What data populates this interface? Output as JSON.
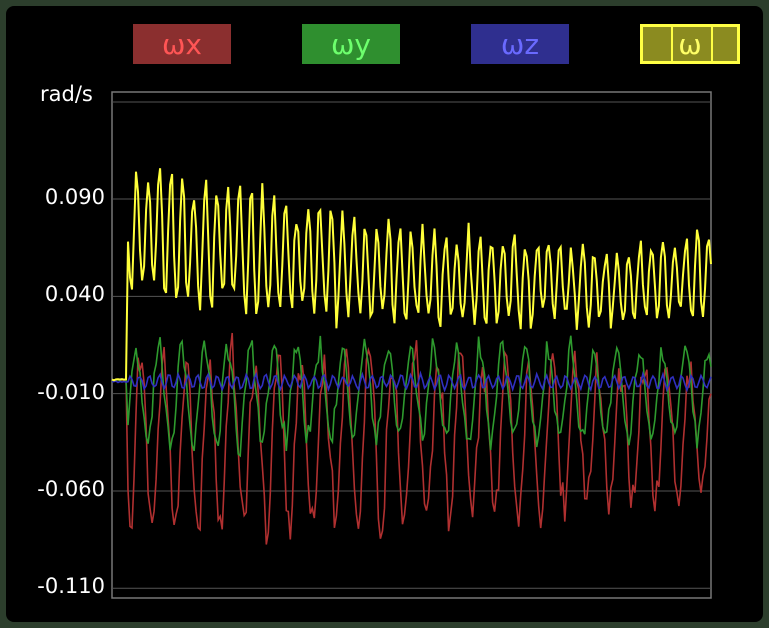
{
  "legend": {
    "wx": {
      "label": "ωx",
      "color": "#b03030"
    },
    "wy": {
      "label": "ωy",
      "color": "#2e9a2e"
    },
    "wz": {
      "label": "ωz",
      "color": "#3030c0"
    },
    "w": {
      "label": "ω",
      "color": "#ffff3a"
    }
  },
  "chart_data": {
    "type": "line",
    "ylabel": "rad/s",
    "ylim": [
      -0.115,
      0.145
    ],
    "yticks": [
      "0.090",
      "0.040",
      "-0.010",
      "-0.060",
      "-0.110"
    ],
    "ytick_values": [
      0.09,
      0.04,
      -0.01,
      -0.06,
      -0.11
    ],
    "grid": true,
    "x_samples": 300,
    "series": [
      {
        "name": "ωx",
        "color": "#b03030",
        "baseline": -0.003,
        "active_start": 8,
        "amp_profile": [
          [
            8,
            0.05
          ],
          [
            120,
            0.05
          ],
          [
            160,
            0.045
          ],
          [
            300,
            0.04
          ]
        ],
        "mean_profile": [
          [
            8,
            -0.035
          ],
          [
            300,
            -0.03
          ]
        ]
      },
      {
        "name": "ωy",
        "color": "#2e9a2e",
        "baseline": -0.003,
        "active_start": 8,
        "amp_profile": [
          [
            8,
            0.03
          ],
          [
            300,
            0.025
          ]
        ],
        "mean_profile": [
          [
            8,
            -0.01
          ],
          [
            300,
            -0.01
          ]
        ]
      },
      {
        "name": "ωz",
        "color": "#3030c0",
        "baseline": -0.004,
        "active_start": 8,
        "amp_profile": [
          [
            8,
            0.004
          ],
          [
            300,
            0.004
          ]
        ],
        "mean_profile": [
          [
            8,
            -0.004
          ],
          [
            300,
            -0.004
          ]
        ]
      },
      {
        "name": "ω",
        "color": "#ffff3a",
        "baseline": -0.003,
        "active_start": 8,
        "amp_profile": [
          [
            8,
            0.04
          ],
          [
            60,
            0.035
          ],
          [
            160,
            0.025
          ],
          [
            250,
            0.022
          ],
          [
            300,
            0.025
          ]
        ],
        "mean_profile": [
          [
            8,
            0.075
          ],
          [
            60,
            0.065
          ],
          [
            160,
            0.05
          ],
          [
            250,
            0.045
          ],
          [
            300,
            0.052
          ]
        ]
      }
    ]
  }
}
